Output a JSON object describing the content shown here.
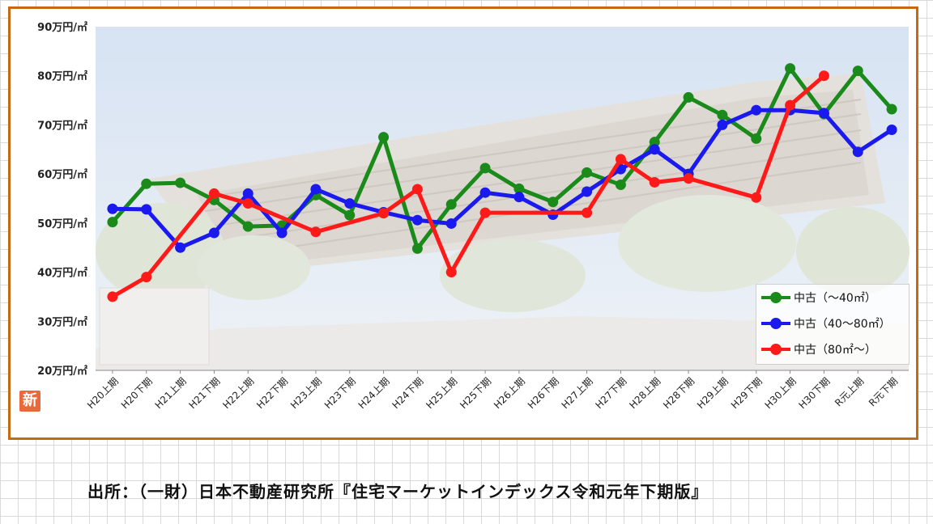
{
  "caption": "出所：（一財）日本不動産研究所『住宅マーケットインデックス令和元年下期版』",
  "badge": "新",
  "chart_data": {
    "type": "line",
    "categories": [
      "H20上期",
      "H20下期",
      "H21上期",
      "H21下期",
      "H22上期",
      "H22下期",
      "H23上期",
      "H23下期",
      "H24上期",
      "H24下期",
      "H25上期",
      "H25下期",
      "H26上期",
      "H26下期",
      "H27上期",
      "H27下期",
      "H28上期",
      "H28下期",
      "H29上期",
      "H29下期",
      "H30上期",
      "H30下期",
      "R元上期",
      "R元下期"
    ],
    "yticks": [
      "20万円/㎡",
      "30万円/㎡",
      "40万円/㎡",
      "50万円/㎡",
      "60万円/㎡",
      "70万円/㎡",
      "80万円/㎡",
      "90万円/㎡"
    ],
    "ylim": [
      20,
      90
    ],
    "grid": false,
    "legend": "bottom-right",
    "series": [
      {
        "name": "中古（～40㎡）",
        "color": "#1a8a1a",
        "values": [
          50.2,
          58.0,
          58.2,
          54.7,
          49.3,
          49.5,
          55.7,
          51.6,
          67.5,
          44.8,
          53.8,
          61.2,
          57.0,
          54.3,
          60.3,
          57.8,
          66.5,
          75.6,
          72.0,
          67.2,
          81.5,
          72.2,
          81.0,
          73.2
        ]
      },
      {
        "name": "中古（40～80㎡）",
        "color": "#1a1aee",
        "values": [
          52.9,
          52.8,
          45.0,
          48.0,
          56.0,
          48.0,
          56.9,
          54.0,
          52.2,
          50.6,
          49.9,
          56.2,
          55.3,
          51.7,
          56.4,
          61.0,
          65.0,
          60.0,
          70.0,
          73.0,
          73.0,
          72.4,
          64.5,
          69.0
        ]
      },
      {
        "name": "中古（80㎡～）",
        "color": "#ff1a1a",
        "values": [
          35.0,
          39.0,
          null,
          56.0,
          54.0,
          null,
          48.2,
          null,
          52.0,
          56.9,
          40.0,
          52.1,
          null,
          null,
          52.1,
          63.0,
          58.3,
          59.1,
          null,
          55.2,
          74.0,
          80.0,
          null,
          null
        ]
      }
    ]
  }
}
